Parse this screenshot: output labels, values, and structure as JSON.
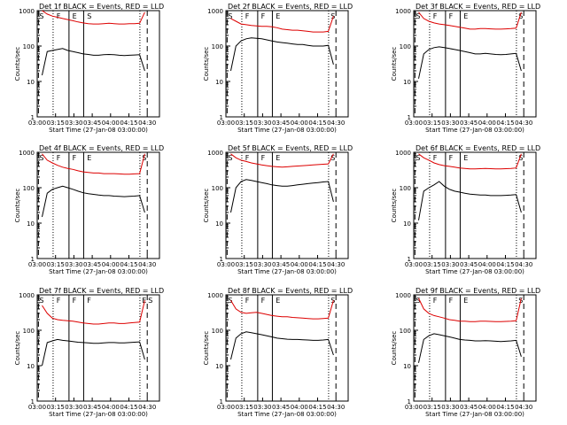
{
  "chart_data": [
    {
      "type": "line",
      "title": "Det 1f BLACK = Events, RED = LLD",
      "xlabel": "Start Time (27-Jan-08 03:00:00)",
      "ylabel": "Counts/sec",
      "x_ticks": [
        "03:00",
        "03:15",
        "03:30",
        "03:45",
        "04:00",
        "04:15",
        "04:30"
      ],
      "y_ticks": [
        "1",
        "10",
        "100",
        "1000"
      ],
      "y_scale": "log",
      "ylim": [
        1,
        1000
      ],
      "xlim_minutes": [
        0,
        100
      ],
      "flags": [
        "S",
        "F",
        "E",
        "S"
      ],
      "series": [
        {
          "name": "LLD",
          "color": "#dd0000",
          "values": [
            1000,
            800,
            700,
            650,
            600,
            560,
            520,
            480,
            450,
            430,
            420,
            420,
            430,
            440,
            430,
            420,
            420,
            430,
            430,
            440,
            900
          ]
        },
        {
          "name": "Events",
          "color": "#000000",
          "values": [
            15,
            70,
            75,
            80,
            85,
            75,
            70,
            65,
            60,
            58,
            55,
            55,
            57,
            58,
            57,
            55,
            54,
            55,
            56,
            57,
            20
          ]
        }
      ]
    },
    {
      "type": "line",
      "title": "Det 2f BLACK = Events, RED = LLD",
      "xlabel": "Start Time (27-Jan-08 03:00:00)",
      "ylabel": "Counts/sec",
      "x_ticks": [
        "03:00",
        "03:15",
        "03:30",
        "03:45",
        "04:00",
        "04:15",
        "04:30"
      ],
      "y_ticks": [
        "1",
        "10",
        "100",
        "1000"
      ],
      "y_scale": "log",
      "ylim": [
        1,
        1000
      ],
      "xlim_minutes": [
        0,
        100
      ],
      "flags": [
        "S",
        "F",
        "F",
        "E",
        "S"
      ],
      "series": [
        {
          "name": "LLD",
          "color": "#dd0000",
          "values": [
            600,
            500,
            420,
            400,
            380,
            370,
            360,
            360,
            350,
            330,
            300,
            290,
            280,
            280,
            270,
            260,
            250,
            250,
            250,
            260,
            700
          ]
        },
        {
          "name": "Events",
          "color": "#000000",
          "values": [
            20,
            100,
            140,
            160,
            170,
            165,
            160,
            150,
            140,
            130,
            125,
            120,
            115,
            110,
            110,
            105,
            100,
            100,
            100,
            105,
            30
          ]
        }
      ]
    },
    {
      "type": "line",
      "title": "Det 3f BLACK = Events, RED = LLD",
      "xlabel": "Start Time (27-Jan-08 03:00:00)",
      "ylabel": "Counts/sec",
      "x_ticks": [
        "03:00",
        "03:15",
        "03:30",
        "03:45",
        "04:00",
        "04:15",
        "04:30"
      ],
      "y_ticks": [
        "1",
        "10",
        "100",
        "1000"
      ],
      "y_scale": "log",
      "ylim": [
        1,
        1000
      ],
      "xlim_minutes": [
        0,
        100
      ],
      "flags": [
        "S",
        "F",
        "F",
        "E",
        "S"
      ],
      "series": [
        {
          "name": "LLD",
          "color": "#dd0000",
          "values": [
            900,
            600,
            500,
            450,
            420,
            400,
            380,
            360,
            340,
            320,
            300,
            300,
            310,
            310,
            305,
            300,
            300,
            305,
            310,
            320,
            900
          ]
        },
        {
          "name": "Events",
          "color": "#000000",
          "values": [
            12,
            60,
            80,
            90,
            95,
            90,
            85,
            80,
            75,
            70,
            65,
            60,
            60,
            62,
            60,
            58,
            57,
            58,
            60,
            62,
            20
          ]
        }
      ]
    },
    {
      "type": "line",
      "title": "Det 4f BLACK = Events, RED = LLD",
      "xlabel": "Start Time (27-Jan-08 03:00:00)",
      "ylabel": "Counts/sec",
      "x_ticks": [
        "03:00",
        "03:15",
        "03:30",
        "03:45",
        "04:00",
        "04:15",
        "04:30"
      ],
      "y_ticks": [
        "1",
        "10",
        "100",
        "1000"
      ],
      "y_scale": "log",
      "ylim": [
        1,
        1000
      ],
      "xlim_minutes": [
        0,
        100
      ],
      "flags": [
        "S",
        "F",
        "F",
        "E",
        "S"
      ],
      "series": [
        {
          "name": "LLD",
          "color": "#dd0000",
          "values": [
            900,
            600,
            500,
            430,
            380,
            350,
            330,
            300,
            280,
            270,
            260,
            260,
            250,
            250,
            250,
            245,
            240,
            240,
            245,
            250,
            900
          ]
        },
        {
          "name": "Events",
          "color": "#000000",
          "values": [
            15,
            70,
            90,
            100,
            110,
            100,
            90,
            80,
            72,
            68,
            65,
            62,
            60,
            60,
            58,
            57,
            56,
            57,
            58,
            60,
            20
          ]
        }
      ]
    },
    {
      "type": "line",
      "title": "Det 5f BLACK = Events, RED = LLD",
      "xlabel": "Start Time (27-Jan-08 03:00:00)",
      "ylabel": "Counts/sec",
      "x_ticks": [
        "03:00",
        "03:15",
        "03:30",
        "03:45",
        "04:00",
        "04:15",
        "04:30"
      ],
      "y_ticks": [
        "1",
        "10",
        "100",
        "1000"
      ],
      "y_scale": "log",
      "ylim": [
        1,
        1000
      ],
      "xlim_minutes": [
        0,
        100
      ],
      "flags": [
        "S",
        "F",
        "F",
        "E",
        "S"
      ],
      "series": [
        {
          "name": "LLD",
          "color": "#dd0000",
          "values": [
            900,
            700,
            600,
            550,
            500,
            470,
            440,
            420,
            400,
            390,
            380,
            390,
            400,
            410,
            420,
            430,
            440,
            450,
            460,
            470,
            900
          ]
        },
        {
          "name": "Events",
          "color": "#000000",
          "values": [
            20,
            100,
            150,
            170,
            160,
            150,
            140,
            130,
            120,
            115,
            110,
            110,
            115,
            120,
            125,
            130,
            135,
            140,
            145,
            150,
            40
          ]
        }
      ]
    },
    {
      "type": "line",
      "title": "Det 6f BLACK = Events, RED = LLD",
      "xlabel": "Start Time (27-Jan-08 03:00:00)",
      "ylabel": "Counts/sec",
      "x_ticks": [
        "03:00",
        "03:15",
        "03:30",
        "03:45",
        "04:00",
        "04:15",
        "04:30"
      ],
      "y_ticks": [
        "1",
        "10",
        "100",
        "1000"
      ],
      "y_scale": "log",
      "ylim": [
        1,
        1000
      ],
      "xlim_minutes": [
        0,
        100
      ],
      "flags": [
        "S",
        "F",
        "F",
        "E",
        "S"
      ],
      "series": [
        {
          "name": "LLD",
          "color": "#dd0000",
          "values": [
            900,
            700,
            600,
            500,
            450,
            420,
            400,
            380,
            360,
            350,
            340,
            340,
            345,
            350,
            345,
            340,
            340,
            345,
            350,
            360,
            900
          ]
        },
        {
          "name": "Events",
          "color": "#000000",
          "values": [
            12,
            80,
            100,
            120,
            150,
            110,
            90,
            80,
            75,
            70,
            66,
            64,
            62,
            62,
            60,
            60,
            60,
            61,
            62,
            64,
            20
          ]
        }
      ]
    },
    {
      "type": "line",
      "title": "Det 7f BLACK = Events, RED = LLD",
      "xlabel": "Start Time (27-Jan-08 03:00:00)",
      "ylabel": "Counts/sec",
      "x_ticks": [
        "03:00",
        "03:15",
        "03:30",
        "03:45",
        "04:00",
        "04:15",
        "04:30"
      ],
      "y_ticks": [
        "1",
        "10",
        "100",
        "1000"
      ],
      "y_scale": "log",
      "ylim": [
        1,
        1000
      ],
      "xlim_minutes": [
        0,
        100
      ],
      "flags": [
        "S",
        "F",
        "F",
        "F",
        "E",
        "S"
      ],
      "series": [
        {
          "name": "LLD",
          "color": "#dd0000",
          "values": [
            500,
            300,
            220,
            200,
            190,
            185,
            180,
            170,
            160,
            155,
            150,
            150,
            155,
            160,
            160,
            155,
            155,
            160,
            165,
            170,
            700
          ]
        },
        {
          "name": "Events",
          "color": "#000000",
          "values": [
            10,
            45,
            50,
            55,
            52,
            50,
            48,
            46,
            45,
            44,
            43,
            43,
            44,
            45,
            45,
            44,
            44,
            45,
            46,
            47,
            15
          ]
        }
      ]
    },
    {
      "type": "line",
      "title": "Det 8f BLACK = Events, RED = LLD",
      "xlabel": "Start Time (27-Jan-08 03:00:00)",
      "ylabel": "Counts/sec",
      "x_ticks": [
        "03:00",
        "03:15",
        "03:30",
        "03:45",
        "04:00",
        "04:15",
        "04:30"
      ],
      "y_ticks": [
        "1",
        "10",
        "100",
        "1000"
      ],
      "y_scale": "log",
      "ylim": [
        1,
        1000
      ],
      "xlim_minutes": [
        0,
        100
      ],
      "flags": [
        "S",
        "F",
        "F",
        "E",
        "S"
      ],
      "series": [
        {
          "name": "LLD",
          "color": "#dd0000",
          "values": [
            700,
            400,
            320,
            300,
            310,
            320,
            300,
            280,
            260,
            250,
            240,
            240,
            230,
            225,
            220,
            215,
            210,
            210,
            215,
            220,
            700
          ]
        },
        {
          "name": "Events",
          "color": "#000000",
          "values": [
            15,
            60,
            80,
            90,
            85,
            80,
            75,
            70,
            65,
            60,
            58,
            56,
            55,
            55,
            54,
            53,
            52,
            52,
            53,
            55,
            20
          ]
        }
      ]
    },
    {
      "type": "line",
      "title": "Det 9f BLACK = Events, RED = LLD",
      "xlabel": "Start Time (27-Jan-08 03:00:00)",
      "ylabel": "Counts/sec",
      "x_ticks": [
        "03:00",
        "03:15",
        "03:30",
        "03:45",
        "04:00",
        "04:15",
        "04:30"
      ],
      "y_ticks": [
        "1",
        "10",
        "100",
        "1000"
      ],
      "y_scale": "log",
      "ylim": [
        1,
        1000
      ],
      "xlim_minutes": [
        0,
        100
      ],
      "flags": [
        "S",
        "F",
        "F",
        "E",
        "S"
      ],
      "series": [
        {
          "name": "LLD",
          "color": "#dd0000",
          "values": [
            800,
            400,
            300,
            260,
            240,
            220,
            200,
            190,
            180,
            180,
            175,
            175,
            180,
            180,
            178,
            175,
            175,
            178,
            180,
            185,
            800
          ]
        },
        {
          "name": "Events",
          "color": "#000000",
          "values": [
            12,
            55,
            70,
            80,
            75,
            70,
            65,
            60,
            55,
            53,
            52,
            50,
            50,
            51,
            50,
            49,
            48,
            49,
            50,
            52,
            18
          ]
        }
      ]
    }
  ]
}
